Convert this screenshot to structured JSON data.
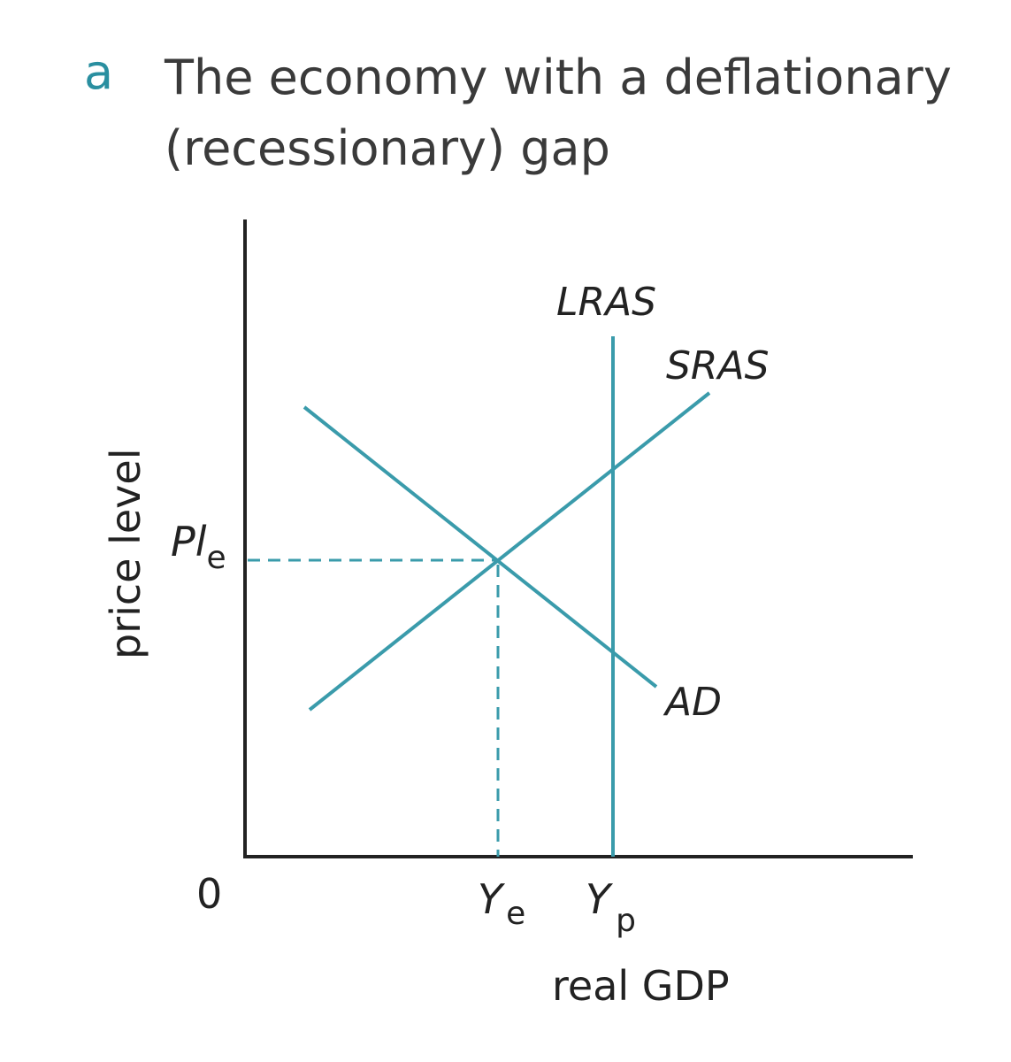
{
  "panel": {
    "letter": "a",
    "title_line1": "The economy with a deflationary",
    "title_line2": "(recessionary) gap"
  },
  "axes": {
    "y_label": "price level",
    "x_label": "real GDP",
    "origin": "0"
  },
  "curves": {
    "lras": "LRAS",
    "sras": "SRAS",
    "ad": "AD"
  },
  "markers": {
    "pl_main": "Pl",
    "pl_sub": "e",
    "ye_main": "Y",
    "ye_sub": "e",
    "yp_main": "Y",
    "yp_sub": "p"
  },
  "colors": {
    "curve": "#3a9bab",
    "axis": "#222222",
    "panel_letter": "#2a8fa0"
  }
}
